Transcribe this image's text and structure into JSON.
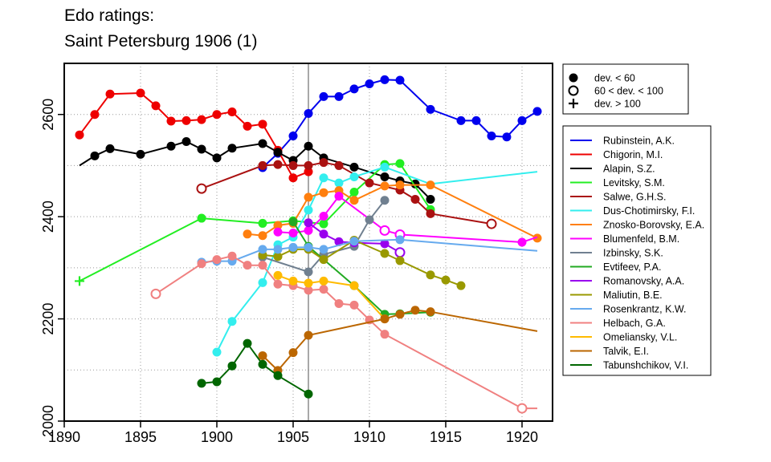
{
  "title_lines": [
    "Edo ratings:",
    "Saint Petersburg 1906 (1)"
  ],
  "chart_data": {
    "type": "line",
    "title": "Edo ratings: Saint Petersburg 1906 (1)",
    "xlim": [
      1890,
      1922
    ],
    "ylim": [
      2000,
      2700
    ],
    "x_ticks": [
      1890,
      1895,
      1900,
      1905,
      1910,
      1915,
      1920
    ],
    "y_ticks": [
      2000,
      2200,
      2400,
      2600
    ],
    "grid": true,
    "vertical_reference_line": 1906,
    "marker_legend": [
      {
        "marker": "filled",
        "label": "dev. < 60"
      },
      {
        "marker": "open",
        "label": "60 < dev. < 100"
      },
      {
        "marker": "plus",
        "label": "dev. > 100"
      }
    ],
    "series": [
      {
        "name": "Rubinstein, A.K.",
        "color": "#0000ee",
        "points": [
          [
            1903,
            2496,
            "f"
          ],
          [
            1904,
            2524,
            "f"
          ],
          [
            1905,
            2558,
            "f"
          ],
          [
            1906,
            2602,
            "f"
          ],
          [
            1907,
            2635,
            "f"
          ],
          [
            1908,
            2635,
            "f"
          ],
          [
            1909,
            2650,
            "f"
          ],
          [
            1910,
            2660,
            "f"
          ],
          [
            1911,
            2668,
            "f"
          ],
          [
            1912,
            2667,
            "f"
          ],
          [
            1914,
            2610,
            "f"
          ],
          [
            1916,
            2588,
            "f"
          ],
          [
            1917,
            2588,
            "f"
          ],
          [
            1918,
            2558,
            "f"
          ],
          [
            1919,
            2556,
            "f"
          ],
          [
            1920,
            2588,
            "f"
          ],
          [
            1921,
            2606,
            "f"
          ]
        ]
      },
      {
        "name": "Chigorin, M.I.",
        "color": "#ee0000",
        "points": [
          [
            1891,
            2560,
            "f"
          ],
          [
            1892,
            2600,
            "f"
          ],
          [
            1893,
            2640,
            "f"
          ],
          [
            1895,
            2642,
            "f"
          ],
          [
            1896,
            2617,
            "f"
          ],
          [
            1897,
            2587,
            "f"
          ],
          [
            1898,
            2588,
            "f"
          ],
          [
            1899,
            2590,
            "f"
          ],
          [
            1900,
            2600,
            "f"
          ],
          [
            1901,
            2605,
            "f"
          ],
          [
            1902,
            2577,
            "f"
          ],
          [
            1903,
            2581,
            "f"
          ],
          [
            1904,
            2530,
            "f"
          ],
          [
            1905,
            2476,
            "f"
          ],
          [
            1906,
            2488,
            "f"
          ]
        ]
      },
      {
        "name": "Alapin, S.Z.",
        "color": "#000000",
        "points": [
          [
            1891,
            2500,
            "n"
          ],
          [
            1892,
            2519,
            "f"
          ],
          [
            1893,
            2533,
            "f"
          ],
          [
            1895,
            2522,
            "f"
          ],
          [
            1897,
            2538,
            "f"
          ],
          [
            1898,
            2547,
            "f"
          ],
          [
            1899,
            2532,
            "f"
          ],
          [
            1900,
            2515,
            "f"
          ],
          [
            1901,
            2534,
            "f"
          ],
          [
            1903,
            2543,
            "f"
          ],
          [
            1904,
            2526,
            "f"
          ],
          [
            1905,
            2510,
            "f"
          ],
          [
            1906,
            2538,
            "f"
          ],
          [
            1907,
            2515,
            "f"
          ],
          [
            1909,
            2497,
            "f"
          ],
          [
            1911,
            2478,
            "f"
          ],
          [
            1912,
            2470,
            "f"
          ],
          [
            1913,
            2464,
            "f"
          ],
          [
            1914,
            2434,
            "f"
          ]
        ]
      },
      {
        "name": "Levitsky, S.M.",
        "color": "#22ee22",
        "points": [
          [
            1891,
            2274,
            "p"
          ],
          [
            1899,
            2397,
            "f"
          ],
          [
            1903,
            2387,
            "f"
          ],
          [
            1905,
            2392,
            "f"
          ],
          [
            1907,
            2386,
            "f"
          ],
          [
            1909,
            2448,
            "f"
          ],
          [
            1911,
            2502,
            "f"
          ],
          [
            1912,
            2504,
            "f"
          ],
          [
            1914,
            2414,
            "f"
          ]
        ]
      },
      {
        "name": "Salwe, G.H.S.",
        "color": "#aa1111",
        "points": [
          [
            1899,
            2455,
            "o"
          ],
          [
            1903,
            2500,
            "f"
          ],
          [
            1904,
            2502,
            "f"
          ],
          [
            1905,
            2500,
            "f"
          ],
          [
            1906,
            2500,
            "f"
          ],
          [
            1907,
            2506,
            "f"
          ],
          [
            1908,
            2500,
            "f"
          ],
          [
            1910,
            2466,
            "f"
          ],
          [
            1912,
            2452,
            "f"
          ],
          [
            1913,
            2434,
            "f"
          ],
          [
            1914,
            2406,
            "f"
          ],
          [
            1918,
            2386,
            "o"
          ]
        ]
      },
      {
        "name": "Dus-Chotimirsky, F.I.",
        "color": "#33eeee",
        "points": [
          [
            1900,
            2135,
            "f"
          ],
          [
            1901,
            2195,
            "f"
          ],
          [
            1903,
            2271,
            "f"
          ],
          [
            1904,
            2345,
            "f"
          ],
          [
            1905,
            2360,
            "f"
          ],
          [
            1906,
            2413,
            "f"
          ],
          [
            1907,
            2476,
            "f"
          ],
          [
            1908,
            2466,
            "f"
          ],
          [
            1909,
            2478,
            "f"
          ],
          [
            1911,
            2497,
            "f"
          ],
          [
            1914,
            2464,
            "n"
          ],
          [
            1921,
            2488,
            "n"
          ]
        ]
      },
      {
        "name": "Znosko-Borovsky, E.A.",
        "color": "#ff7f0e",
        "points": [
          [
            1902,
            2366,
            "f"
          ],
          [
            1903,
            2363,
            "f"
          ],
          [
            1904,
            2383,
            "f"
          ],
          [
            1905,
            2387,
            "f"
          ],
          [
            1906,
            2438,
            "f"
          ],
          [
            1907,
            2447,
            "f"
          ],
          [
            1908,
            2451,
            "f"
          ],
          [
            1909,
            2432,
            "f"
          ],
          [
            1911,
            2460,
            "f"
          ],
          [
            1912,
            2462,
            "f"
          ],
          [
            1914,
            2462,
            "f"
          ],
          [
            1921,
            2358,
            "f"
          ]
        ]
      },
      {
        "name": "Blumenfeld, B.M.",
        "color": "#ff00ff",
        "points": [
          [
            1904,
            2370,
            "f"
          ],
          [
            1905,
            2368,
            "f"
          ],
          [
            1906,
            2373,
            "f"
          ],
          [
            1907,
            2401,
            "f"
          ],
          [
            1908,
            2440,
            "f"
          ],
          [
            1911,
            2373,
            "o"
          ],
          [
            1912,
            2365,
            "o"
          ],
          [
            1920,
            2350,
            "f"
          ],
          [
            1921,
            2360,
            "n"
          ]
        ]
      },
      {
        "name": "Izbinsky, S.K.",
        "color": "#708090",
        "points": [
          [
            1903,
            2321,
            "f"
          ],
          [
            1906,
            2292,
            "f"
          ],
          [
            1907,
            2326,
            "f"
          ],
          [
            1909,
            2342,
            "f"
          ],
          [
            1910,
            2394,
            "f"
          ],
          [
            1911,
            2432,
            "f"
          ]
        ]
      },
      {
        "name": "Evtifeev, P.A.",
        "color": "#22aa22",
        "points": [
          [
            1905,
            2390,
            "f"
          ],
          [
            1906,
            2342,
            "f"
          ],
          [
            1909,
            2265,
            "f"
          ],
          [
            1911,
            2209,
            "f"
          ],
          [
            1912,
            2210,
            "f"
          ],
          [
            1914,
            2213,
            "f"
          ]
        ]
      },
      {
        "name": "Romanovsky, A.A.",
        "color": "#9900ee",
        "points": [
          [
            1906,
            2388,
            "f"
          ],
          [
            1907,
            2366,
            "f"
          ],
          [
            1908,
            2351,
            "f"
          ],
          [
            1909,
            2349,
            "f"
          ],
          [
            1911,
            2347,
            "f"
          ],
          [
            1912,
            2330,
            "o"
          ]
        ]
      },
      {
        "name": "Maliutin, B.E.",
        "color": "#999900",
        "points": [
          [
            1903,
            2325,
            "f"
          ],
          [
            1904,
            2322,
            "f"
          ],
          [
            1905,
            2336,
            "f"
          ],
          [
            1906,
            2336,
            "f"
          ],
          [
            1907,
            2316,
            "f"
          ],
          [
            1909,
            2354,
            "f"
          ],
          [
            1911,
            2328,
            "f"
          ],
          [
            1912,
            2314,
            "f"
          ],
          [
            1914,
            2286,
            "f"
          ],
          [
            1915,
            2276,
            "f"
          ],
          [
            1916,
            2265,
            "f"
          ]
        ]
      },
      {
        "name": "Rosenkrantz, K.W.",
        "color": "#66aaee",
        "points": [
          [
            1899,
            2311,
            "f"
          ],
          [
            1900,
            2313,
            "f"
          ],
          [
            1901,
            2313,
            "f"
          ],
          [
            1903,
            2336,
            "f"
          ],
          [
            1904,
            2336,
            "f"
          ],
          [
            1905,
            2340,
            "f"
          ],
          [
            1906,
            2340,
            "f"
          ],
          [
            1907,
            2336,
            "f"
          ],
          [
            1909,
            2352,
            "f"
          ],
          [
            1912,
            2355,
            "f"
          ],
          [
            1921,
            2333,
            "n"
          ]
        ]
      },
      {
        "name": "Helbach, G.A.",
        "color": "#f08080",
        "points": [
          [
            1896,
            2249,
            "o"
          ],
          [
            1899,
            2308,
            "f"
          ],
          [
            1900,
            2316,
            "f"
          ],
          [
            1901,
            2323,
            "f"
          ],
          [
            1902,
            2305,
            "f"
          ],
          [
            1903,
            2305,
            "f"
          ],
          [
            1904,
            2268,
            "f"
          ],
          [
            1905,
            2265,
            "f"
          ],
          [
            1906,
            2256,
            "f"
          ],
          [
            1907,
            2258,
            "f"
          ],
          [
            1908,
            2230,
            "f"
          ],
          [
            1909,
            2227,
            "f"
          ],
          [
            1910,
            2198,
            "f"
          ],
          [
            1911,
            2170,
            "f"
          ],
          [
            1920,
            2025,
            "o"
          ],
          [
            1921,
            2025,
            "n"
          ]
        ]
      },
      {
        "name": "Omeliansky, V.L.",
        "color": "#ffbb00",
        "points": [
          [
            1904,
            2285,
            "f"
          ],
          [
            1905,
            2274,
            "f"
          ],
          [
            1906,
            2270,
            "f"
          ],
          [
            1907,
            2274,
            "f"
          ],
          [
            1909,
            2265,
            "f"
          ],
          [
            1911,
            2200,
            "f"
          ]
        ]
      },
      {
        "name": "Talvik, E.I.",
        "color": "#bb6600",
        "points": [
          [
            1903,
            2128,
            "f"
          ],
          [
            1904,
            2099,
            "f"
          ],
          [
            1905,
            2134,
            "f"
          ],
          [
            1906,
            2168,
            "f"
          ],
          [
            1911,
            2200,
            "f"
          ],
          [
            1912,
            2209,
            "f"
          ],
          [
            1913,
            2217,
            "f"
          ],
          [
            1914,
            2214,
            "f"
          ],
          [
            1921,
            2176,
            "n"
          ]
        ]
      },
      {
        "name": "Tabunshchikov, V.I.",
        "color": "#006600",
        "points": [
          [
            1899,
            2074,
            "f"
          ],
          [
            1900,
            2077,
            "f"
          ],
          [
            1901,
            2108,
            "f"
          ],
          [
            1902,
            2152,
            "f"
          ],
          [
            1903,
            2111,
            "f"
          ],
          [
            1904,
            2089,
            "f"
          ],
          [
            1906,
            2053,
            "f"
          ]
        ]
      }
    ]
  }
}
